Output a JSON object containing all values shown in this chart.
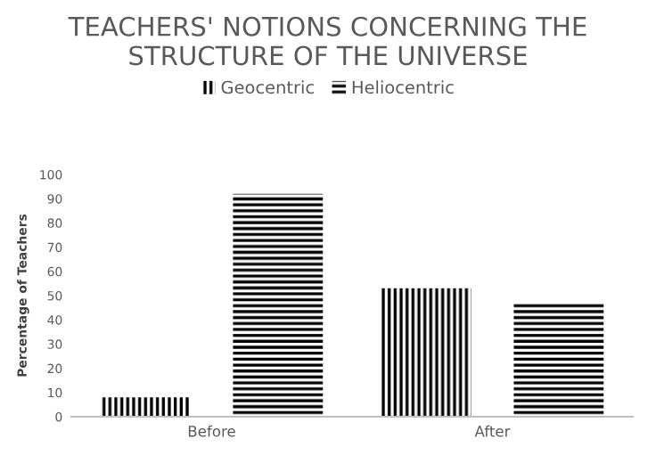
{
  "chart_data": {
    "type": "bar",
    "title": "TEACHERS' NOTIONS CONCERNING THE STRUCTURE OF THE UNIVERSE",
    "ylabel": "Percentage of Teachers",
    "categories": [
      "Before",
      "After"
    ],
    "series": [
      {
        "name": "Geocentric",
        "color": "#000000",
        "values": [
          8,
          53
        ]
      },
      {
        "name": "Heliocentric",
        "color": "#000000",
        "values": [
          92,
          47
        ]
      }
    ],
    "ylim": [
      0,
      100
    ],
    "yticks": [
      0,
      10,
      20,
      30,
      40,
      50,
      60,
      70,
      80,
      90,
      100
    ],
    "grid": false,
    "legend": "top"
  }
}
